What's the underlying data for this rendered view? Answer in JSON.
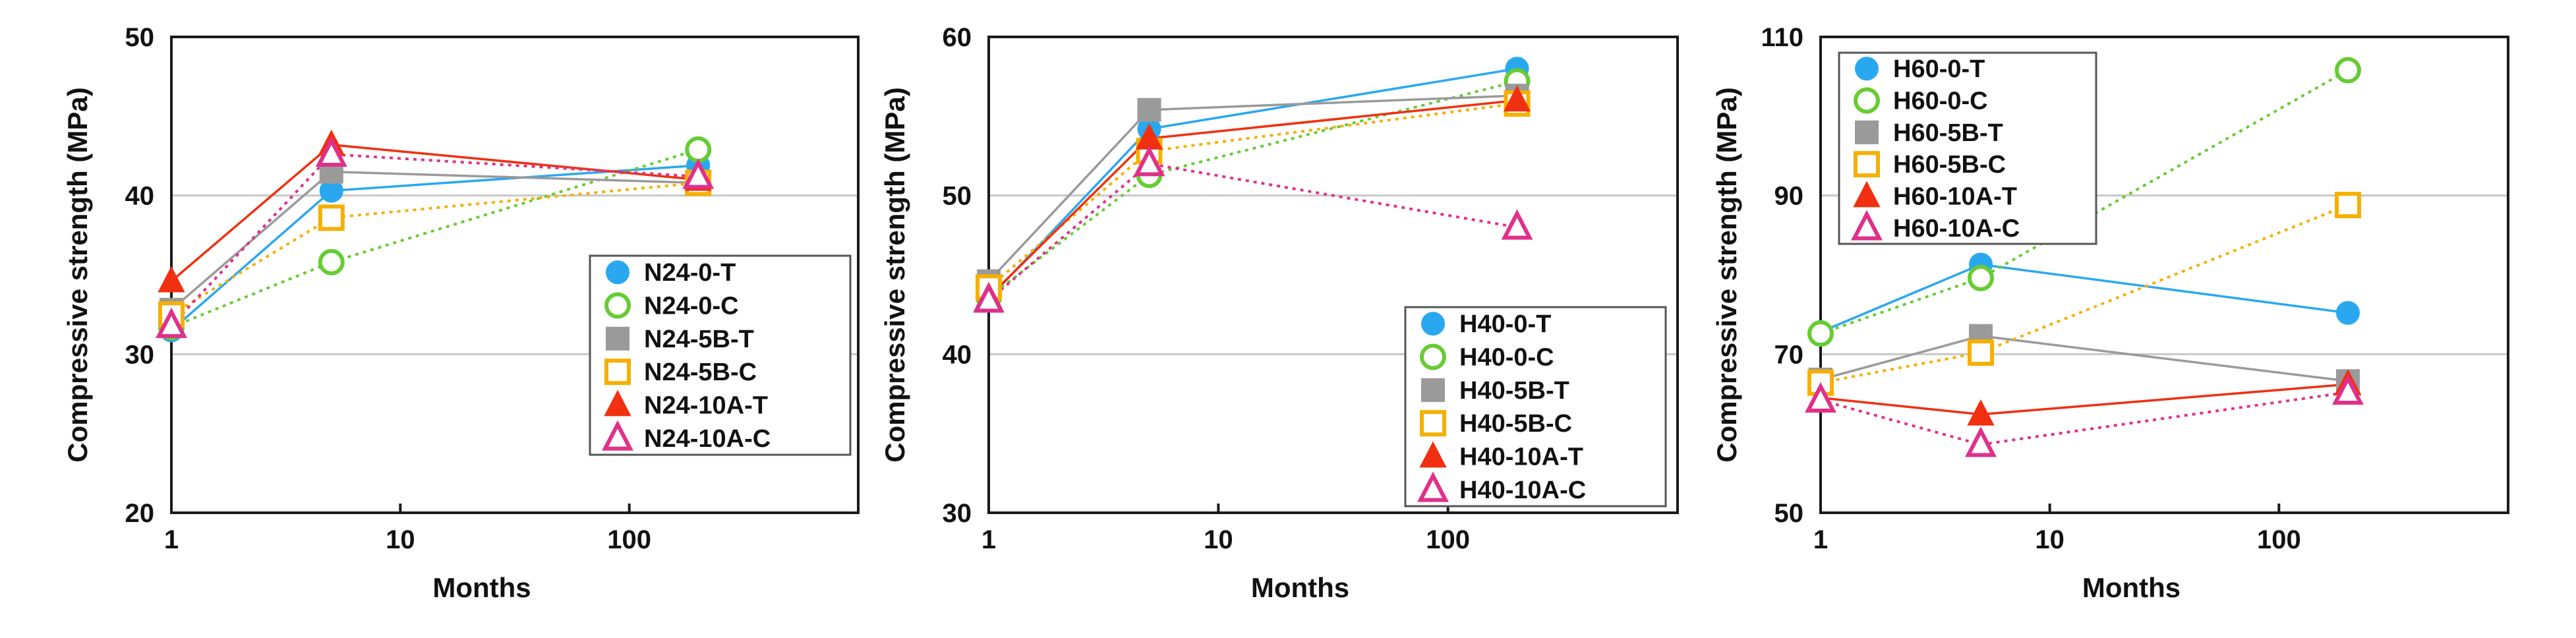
{
  "chart_data": [
    {
      "type": "scatter",
      "xscale": "log",
      "xlim": [
        1,
        1000
      ],
      "ylim": [
        20,
        50
      ],
      "xticks": [
        1,
        10,
        100
      ],
      "xtick_labels": [
        "1",
        "10",
        "100"
      ],
      "yticks": [
        20,
        30,
        40,
        50
      ],
      "ytick_labels": [
        "20",
        "30",
        "40",
        "50"
      ],
      "xlabel": "Months",
      "ylabel": "Compressive strength (MPa)",
      "grid": "horizontal",
      "legend_position": "center-right",
      "series": [
        {
          "name": "N24-0-T",
          "marker": "circle-filled",
          "line": "solid",
          "color": "#29a8f0",
          "x": [
            1,
            5,
            200
          ],
          "y": [
            31.5,
            40.3,
            41.9
          ]
        },
        {
          "name": "N24-0-C",
          "marker": "circle-open",
          "line": "dotted",
          "color": "#66cc33",
          "x": [
            1,
            5,
            200
          ],
          "y": [
            31.7,
            35.8,
            42.9
          ]
        },
        {
          "name": "N24-5B-T",
          "marker": "square-filled",
          "line": "solid",
          "color": "#9a9a9a",
          "x": [
            1,
            5,
            200
          ],
          "y": [
            32.8,
            41.5,
            40.8
          ]
        },
        {
          "name": "N24-5B-C",
          "marker": "square-open",
          "line": "dotted",
          "color": "#f5b000",
          "x": [
            1,
            5,
            200
          ],
          "y": [
            32.5,
            38.6,
            40.8
          ]
        },
        {
          "name": "N24-10A-T",
          "marker": "triangle-filled",
          "line": "solid",
          "color": "#f03010",
          "x": [
            1,
            5,
            200
          ],
          "y": [
            34.6,
            43.2,
            41.0
          ]
        },
        {
          "name": "N24-10A-C",
          "marker": "triangle-open",
          "line": "dotted",
          "color": "#e0308a",
          "x": [
            1,
            5,
            200
          ],
          "y": [
            31.8,
            42.6,
            41.2
          ]
        }
      ]
    },
    {
      "type": "scatter",
      "xscale": "log",
      "xlim": [
        1,
        1000
      ],
      "ylim": [
        30,
        60
      ],
      "xticks": [
        1,
        10,
        100
      ],
      "xtick_labels": [
        "1",
        "10",
        "100"
      ],
      "yticks": [
        30,
        40,
        50,
        60
      ],
      "ytick_labels": [
        "30",
        "40",
        "50",
        "60"
      ],
      "xlabel": "Months",
      "ylabel": "Compressive strength (MPa)",
      "grid": "horizontal",
      "legend_position": "bottom-right",
      "series": [
        {
          "name": "H40-0-T",
          "marker": "circle-filled",
          "line": "solid",
          "color": "#29a8f0",
          "x": [
            1,
            5,
            200
          ],
          "y": [
            43.5,
            54.2,
            58.0
          ]
        },
        {
          "name": "H40-0-C",
          "marker": "circle-open",
          "line": "dotted",
          "color": "#66cc33",
          "x": [
            1,
            5,
            200
          ],
          "y": [
            43.6,
            51.3,
            57.2
          ]
        },
        {
          "name": "H40-5B-T",
          "marker": "square-filled",
          "line": "solid",
          "color": "#9a9a9a",
          "x": [
            1,
            5,
            200
          ],
          "y": [
            44.6,
            55.4,
            56.3
          ]
        },
        {
          "name": "H40-5B-C",
          "marker": "square-open",
          "line": "dotted",
          "color": "#f5b000",
          "x": [
            1,
            5,
            200
          ],
          "y": [
            44.2,
            52.8,
            55.8
          ]
        },
        {
          "name": "H40-10A-T",
          "marker": "triangle-filled",
          "line": "solid",
          "color": "#f03010",
          "x": [
            1,
            5,
            200
          ],
          "y": [
            43.6,
            53.6,
            56.0
          ]
        },
        {
          "name": "H40-10A-C",
          "marker": "triangle-open",
          "line": "dotted",
          "color": "#e0308a",
          "x": [
            1,
            5,
            200
          ],
          "y": [
            43.4,
            52.0,
            48.0
          ]
        }
      ]
    },
    {
      "type": "scatter",
      "xscale": "log",
      "xlim": [
        1,
        1000
      ],
      "ylim": [
        50,
        110
      ],
      "xticks": [
        1,
        10,
        100
      ],
      "xtick_labels": [
        "1",
        "10",
        "100"
      ],
      "yticks": [
        50,
        70,
        90,
        110
      ],
      "ytick_labels": [
        "50",
        "70",
        "90",
        "110"
      ],
      "xlabel": "Months",
      "ylabel": "Compressive strength (MPa)",
      "grid": "horizontal",
      "legend_position": "top-left",
      "series": [
        {
          "name": "H60-0-T",
          "marker": "circle-filled",
          "line": "solid",
          "color": "#29a8f0",
          "x": [
            1,
            5,
            200
          ],
          "y": [
            72.8,
            81.3,
            75.2
          ]
        },
        {
          "name": "H60-0-C",
          "marker": "circle-open",
          "line": "dotted",
          "color": "#66cc33",
          "x": [
            1,
            5,
            200
          ],
          "y": [
            72.6,
            79.6,
            105.8
          ]
        },
        {
          "name": "H60-5B-T",
          "marker": "square-filled",
          "line": "solid",
          "color": "#9a9a9a",
          "x": [
            1,
            5,
            200
          ],
          "y": [
            66.8,
            72.3,
            66.6
          ]
        },
        {
          "name": "H60-5B-C",
          "marker": "square-open",
          "line": "dotted",
          "color": "#f5b000",
          "x": [
            1,
            5,
            200
          ],
          "y": [
            66.4,
            70.2,
            88.8
          ]
        },
        {
          "name": "H60-10A-T",
          "marker": "triangle-filled",
          "line": "solid",
          "color": "#f03010",
          "x": [
            1,
            5,
            200
          ],
          "y": [
            64.5,
            62.4,
            66.2
          ]
        },
        {
          "name": "H60-10A-C",
          "marker": "triangle-open",
          "line": "dotted",
          "color": "#e0308a",
          "x": [
            1,
            5,
            200
          ],
          "y": [
            64.2,
            58.6,
            65.2
          ]
        }
      ]
    }
  ]
}
